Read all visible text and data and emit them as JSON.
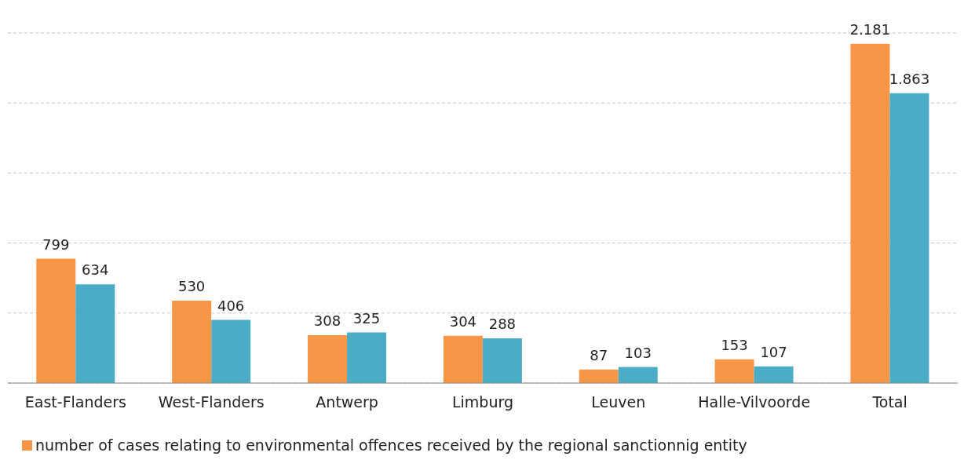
{
  "chart_data": {
    "type": "bar",
    "categories": [
      "East-Flanders",
      "West-Flanders",
      "Antwerp",
      "Limburg",
      "Leuven",
      "Halle-Vilvoorde",
      "Total"
    ],
    "series": [
      {
        "name": "number of cases relating to environmental offences received by the regional sanctionnig entity",
        "color": "#f79646",
        "values": [
          799,
          530,
          308,
          304,
          87,
          153,
          2181
        ],
        "value_labels": [
          "799",
          "530",
          "308",
          "304",
          "87",
          "153",
          "2.181"
        ]
      },
      {
        "color": "#4bacc6",
        "values": [
          634,
          406,
          325,
          288,
          103,
          107,
          1863
        ],
        "value_labels": [
          "634",
          "406",
          "325",
          "288",
          "103",
          "107",
          "1.863"
        ]
      }
    ],
    "tick_labels": "x",
    "grid": "y",
    "legend": "bottom left"
  }
}
